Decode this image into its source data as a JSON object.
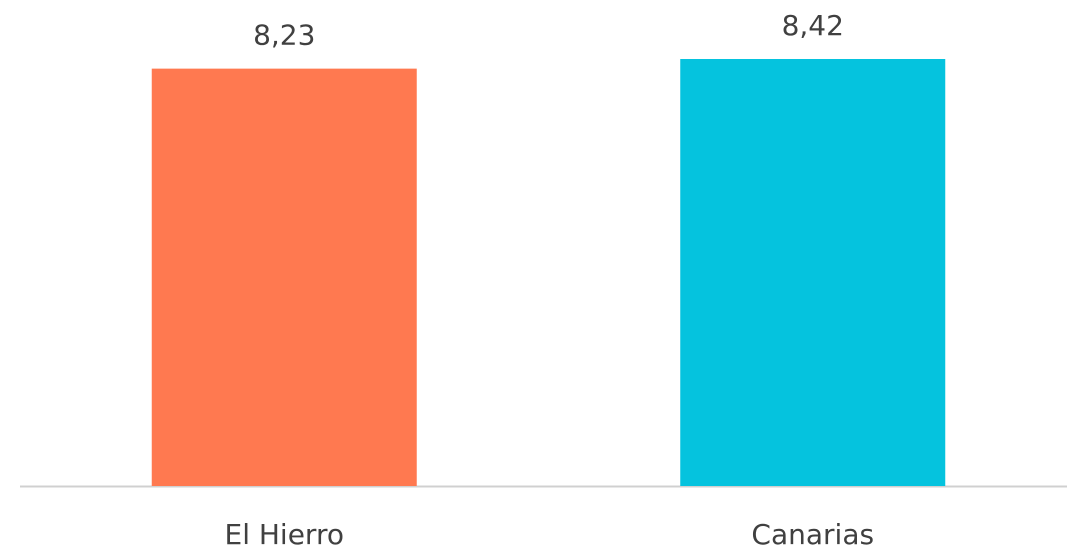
{
  "chart_data": {
    "type": "bar",
    "categories": [
      "El Hierro",
      "Canarias"
    ],
    "values": [
      8.23,
      8.42
    ],
    "value_labels": [
      "8,23",
      "8,42"
    ],
    "colors": [
      "#ff7950",
      "#05c3de"
    ]
  }
}
